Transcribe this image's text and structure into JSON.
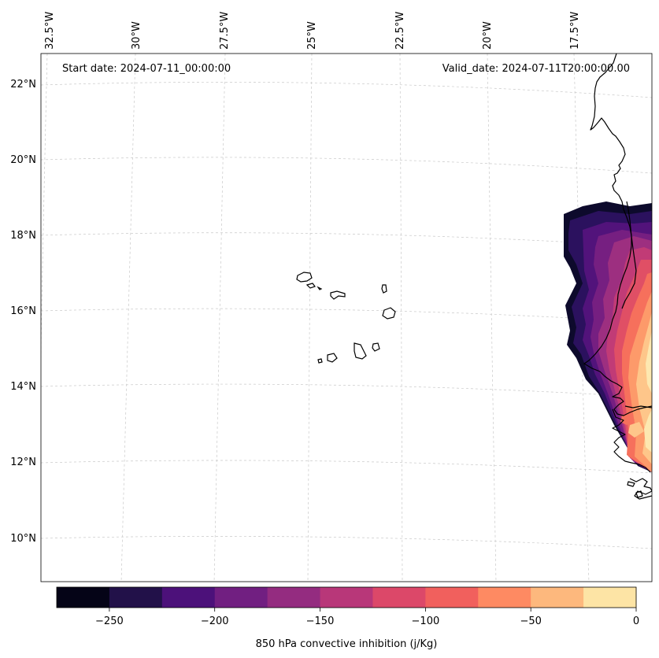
{
  "header": {
    "start_date": "Start date: 2024-07-11_00:00:00",
    "valid_date": "Valid_date: 2024-07-11T20:00:00.00"
  },
  "map": {
    "lon_labels": [
      "32.5°W",
      "30°W",
      "27.5°W",
      "25°W",
      "22.5°W",
      "20°W",
      "17.5°W"
    ],
    "lat_labels": [
      "22°N",
      "20°N",
      "18°N",
      "16°N",
      "14°N",
      "12°N",
      "10°N"
    ]
  },
  "colorbar": {
    "label": "850 hPa convective inhibition (j/Kg)",
    "tick_labels": [
      "−250",
      "−200",
      "−150",
      "−100",
      "−50",
      "0"
    ],
    "colors": [
      "#050417",
      "#221149",
      "#4c117a",
      "#711f81",
      "#942c80",
      "#b83779",
      "#dc4869",
      "#f1605d",
      "#fe8a62",
      "#fdb87d",
      "#fde4a5"
    ]
  }
}
